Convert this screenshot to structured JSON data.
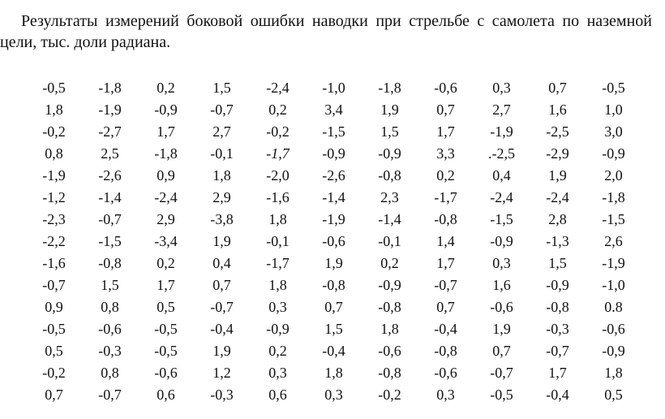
{
  "caption": {
    "line1": "Результаты измерений боковой ошибки наводки при стрельбе с самолета по наземной",
    "line2": "цели, тыс. доли радиана."
  },
  "table": {
    "rows": [
      [
        "-0,5",
        "-1,8",
        "0,2",
        "1,5",
        "-2,4",
        "-1,0",
        "-1,8",
        "-0,6",
        "0,3",
        "0,7",
        "-0,5"
      ],
      [
        "1,8",
        "-1,9",
        "-0,9",
        "-0,7",
        "0,2",
        "3,4",
        "1,9",
        "0,7",
        "2,7",
        "1,6",
        "1,0"
      ],
      [
        "-0,2",
        "-2,7",
        "1,7",
        "2,7",
        "-0,2",
        "-1,5",
        "1,5",
        "1,7",
        "-1,9",
        "-2,5",
        "3,0"
      ],
      [
        "0,8",
        "2,5",
        "-1,8",
        "-0,1",
        "-1,7",
        "-0,9",
        "-0,9",
        "3,3",
        ".-2,5",
        "-2,9",
        "-0,9"
      ],
      [
        "-1,9",
        "-2,6",
        "0,9",
        "1,8",
        "-2,0",
        "-2,6",
        "-0,8",
        "0,2",
        "0,4",
        "1,9",
        "2,0"
      ],
      [
        "-1,2",
        "-1,4",
        "-2,4",
        "2,9",
        "-1,6",
        "-1,4",
        "2,3",
        "-1,7",
        "-2,4",
        "-2,4",
        "-1,8"
      ],
      [
        "-2,3",
        "-0,7",
        "2,9",
        "-3,8",
        "1,8",
        "-1,9",
        "-1,4",
        "-0,8",
        "-1,5",
        "2,8",
        "-1,5"
      ],
      [
        "-2,2",
        "-1,5",
        "-3,4",
        "1,9",
        "-0,1",
        "-0,6",
        "-0,1",
        "1,4",
        "-0,9",
        "-1,3",
        "2,6"
      ],
      [
        "-1,6",
        "-0,8",
        "0,2",
        "0,4",
        "-1,7",
        "1,9",
        "0,2",
        "1,7",
        "0,3",
        "1,5",
        "-1,9"
      ],
      [
        "-0,7",
        "1,5",
        "1,7",
        "0,7",
        "1,8",
        "-0,8",
        "-0,9",
        "-0,7",
        "1,6",
        "-0,9",
        "-1,0"
      ],
      [
        "0,9",
        "0,8",
        "0,5",
        "-0,7",
        "0,3",
        "0,7",
        "-0,8",
        "0,7",
        "-0,6",
        "-0,8",
        "0.8"
      ],
      [
        "-0,5",
        "-0,6",
        "-0,5",
        "-0,4",
        "-0,9",
        "1,5",
        "1,8",
        "-0,4",
        "1,9",
        "-0,3",
        "-0,6"
      ],
      [
        "0,5",
        "-0,3",
        "-0,5",
        "1,9",
        "0,2",
        "-0,4",
        "-0,6",
        "-0,8",
        "0,7",
        "-0,7",
        "-0,9"
      ],
      [
        "-0,2",
        "0,8",
        "-0,6",
        "1,2",
        "0,3",
        "1,8",
        "-0,8",
        "-0,6",
        "-0,7",
        "1,7",
        "1,8"
      ],
      [
        "0,7",
        "-0,7",
        "0,6",
        "-0,3",
        "0,6",
        "0,3",
        "-0,2",
        "0,3",
        "-0,5",
        "-0,4",
        "0,5"
      ]
    ],
    "italic_cells": [
      "3-4"
    ]
  }
}
